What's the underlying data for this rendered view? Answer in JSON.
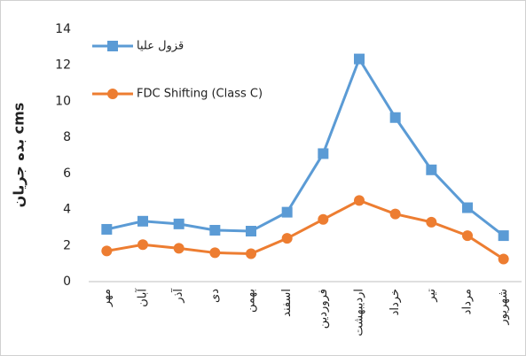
{
  "chart_data": {
    "type": "line",
    "y_label": "بده جریان cms",
    "categories": [
      "مهر",
      "آبان",
      "آذر",
      "دی",
      "بهمن",
      "اسفند",
      "فروردین",
      "اردیبهشت",
      "خرداد",
      "تیر",
      "مرداد",
      "شهریور"
    ],
    "series": [
      {
        "name": "قزول علیا",
        "color": "#5b9bd5",
        "marker": "square",
        "values": [
          2.9,
          3.35,
          3.2,
          2.85,
          2.8,
          3.85,
          7.1,
          12.35,
          9.1,
          6.2,
          4.1,
          2.55
        ]
      },
      {
        "name": "FDC Shifting (Class C)",
        "color": "#ed7d31",
        "marker": "circle",
        "values": [
          1.7,
          2.05,
          1.85,
          1.6,
          1.55,
          2.4,
          3.45,
          4.5,
          3.75,
          3.3,
          2.55,
          1.25
        ]
      }
    ],
    "ylim": [
      0,
      14
    ],
    "yticks": [
      0,
      2,
      4,
      6,
      8,
      10,
      12,
      14
    ],
    "grid": false,
    "legend": "top-left"
  }
}
